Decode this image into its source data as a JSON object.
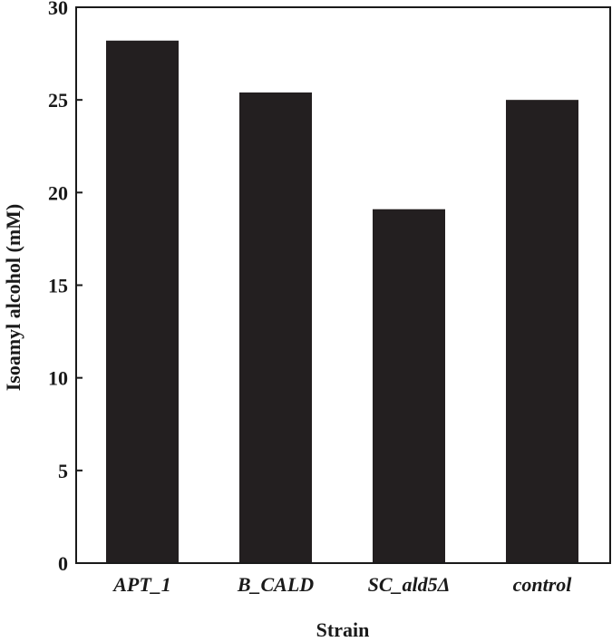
{
  "chart_data": {
    "type": "bar",
    "categories": [
      "APT_1",
      "B_CALD",
      "SC_ald5Δ",
      "control"
    ],
    "values": [
      28.2,
      25.4,
      19.1,
      25.0
    ],
    "xlabel": "Strain",
    "ylabel": "Isoamyl alcohol (mM)",
    "ylim": [
      0,
      30
    ],
    "yticks": [
      0,
      5,
      10,
      15,
      20,
      25,
      30
    ],
    "grid": false,
    "legend": "none",
    "bar_color": "#231f20"
  }
}
